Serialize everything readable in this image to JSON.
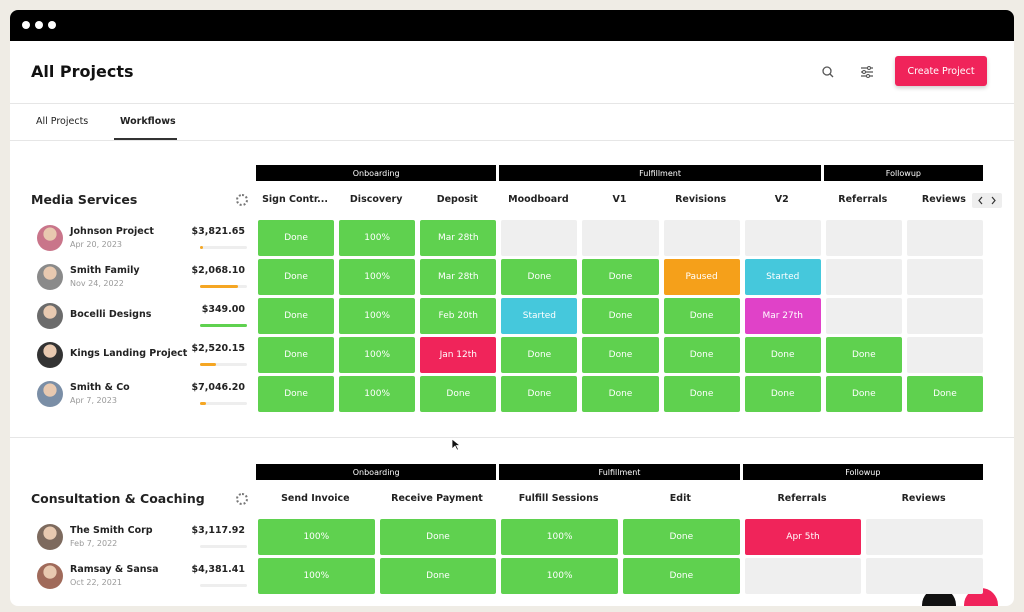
{
  "header": {
    "title": "All Projects",
    "button": "Create Project"
  },
  "tabs": {
    "items": [
      "All Projects",
      "Workflows"
    ],
    "active": 1
  },
  "sections": [
    {
      "title": "Media Services",
      "groups": [
        {
          "name": "Onboarding",
          "span": 3
        },
        {
          "name": "Fulfillment",
          "span": 4
        },
        {
          "name": "Followup",
          "span": 2
        }
      ],
      "columns": [
        "Sign Contr...",
        "Discovery",
        "Deposit",
        "Moodboard",
        "V1",
        "Revisions",
        "V2",
        "Referrals",
        "Reviews"
      ],
      "projects": [
        {
          "name": "Johnson Project",
          "date": "Apr 20, 2023",
          "amount": "$3,821.65",
          "progress": 6,
          "progress_color": "#f5a623",
          "cells": [
            {
              "text": "Done",
              "color": "#5fd14f"
            },
            {
              "text": "100%",
              "color": "#5fd14f"
            },
            {
              "text": "Mar 28th",
              "color": "#5fd14f"
            },
            null,
            null,
            null,
            null,
            null,
            null
          ]
        },
        {
          "name": "Smith Family",
          "date": "Nov 24, 2022",
          "amount": "$2,068.10",
          "progress": 80,
          "progress_color": "#f5a623",
          "cells": [
            {
              "text": "Done",
              "color": "#5fd14f"
            },
            {
              "text": "100%",
              "color": "#5fd14f"
            },
            {
              "text": "Mar 28th",
              "color": "#5fd14f"
            },
            {
              "text": "Done",
              "color": "#5fd14f"
            },
            {
              "text": "Done",
              "color": "#5fd14f"
            },
            {
              "text": "Paused",
              "color": "#f5a01a"
            },
            {
              "text": "Started",
              "color": "#45c8dc"
            },
            null,
            null
          ]
        },
        {
          "name": "Bocelli Designs",
          "amount": "$349.00",
          "progress": 100,
          "progress_color": "#5fd14f",
          "cells": [
            {
              "text": "Done",
              "color": "#5fd14f"
            },
            {
              "text": "100%",
              "color": "#5fd14f"
            },
            {
              "text": "Feb 20th",
              "color": "#5fd14f"
            },
            {
              "text": "Started",
              "color": "#45c8dc"
            },
            {
              "text": "Done",
              "color": "#5fd14f"
            },
            {
              "text": "Done",
              "color": "#5fd14f"
            },
            {
              "text": "Mar 27th",
              "color": "#e042c8"
            },
            null,
            null
          ]
        },
        {
          "name": "Kings Landing Project",
          "amount": "$2,520.15",
          "progress": 35,
          "progress_color": "#f5a623",
          "cells": [
            {
              "text": "Done",
              "color": "#5fd14f"
            },
            {
              "text": "100%",
              "color": "#5fd14f"
            },
            {
              "text": "Jan 12th",
              "color": "#f0245a"
            },
            {
              "text": "Done",
              "color": "#5fd14f"
            },
            {
              "text": "Done",
              "color": "#5fd14f"
            },
            {
              "text": "Done",
              "color": "#5fd14f"
            },
            {
              "text": "Done",
              "color": "#5fd14f"
            },
            {
              "text": "Done",
              "color": "#5fd14f"
            },
            null
          ]
        },
        {
          "name": "Smith & Co",
          "date": "Apr 7, 2023",
          "amount": "$7,046.20",
          "progress": 12,
          "progress_color": "#f5a623",
          "cells": [
            {
              "text": "Done",
              "color": "#5fd14f"
            },
            {
              "text": "100%",
              "color": "#5fd14f"
            },
            {
              "text": "Done",
              "color": "#5fd14f"
            },
            {
              "text": "Done",
              "color": "#5fd14f"
            },
            {
              "text": "Done",
              "color": "#5fd14f"
            },
            {
              "text": "Done",
              "color": "#5fd14f"
            },
            {
              "text": "Done",
              "color": "#5fd14f"
            },
            {
              "text": "Done",
              "color": "#5fd14f"
            },
            {
              "text": "Done",
              "color": "#5fd14f"
            }
          ]
        }
      ]
    },
    {
      "title": "Consultation & Coaching",
      "groups": [
        {
          "name": "Onboarding",
          "span": 2
        },
        {
          "name": "Fulfillment",
          "span": 2
        },
        {
          "name": "Followup",
          "span": 2
        }
      ],
      "columns": [
        "Send Invoice",
        "Receive Payment",
        "Fulfill Sessions",
        "Edit",
        "Referrals",
        "Reviews"
      ],
      "projects": [
        {
          "name": "The Smith Corp",
          "date": "Feb 7, 2022",
          "amount": "$3,117.92",
          "progress": 0,
          "progress_color": "#f5a623",
          "cells": [
            {
              "text": "100%",
              "color": "#5fd14f"
            },
            {
              "text": "Done",
              "color": "#5fd14f"
            },
            {
              "text": "100%",
              "color": "#5fd14f"
            },
            {
              "text": "Done",
              "color": "#5fd14f"
            },
            {
              "text": "Apr 5th",
              "color": "#f0245a"
            },
            null
          ]
        },
        {
          "name": "Ramsay & Sansa",
          "date": "Oct 22, 2021",
          "amount": "$4,381.41",
          "progress": 0,
          "progress_color": "#f5a623",
          "cells": [
            {
              "text": "100%",
              "color": "#5fd14f"
            },
            {
              "text": "Done",
              "color": "#5fd14f"
            },
            {
              "text": "100%",
              "color": "#5fd14f"
            },
            {
              "text": "Done",
              "color": "#5fd14f"
            },
            null,
            null
          ]
        }
      ]
    }
  ]
}
